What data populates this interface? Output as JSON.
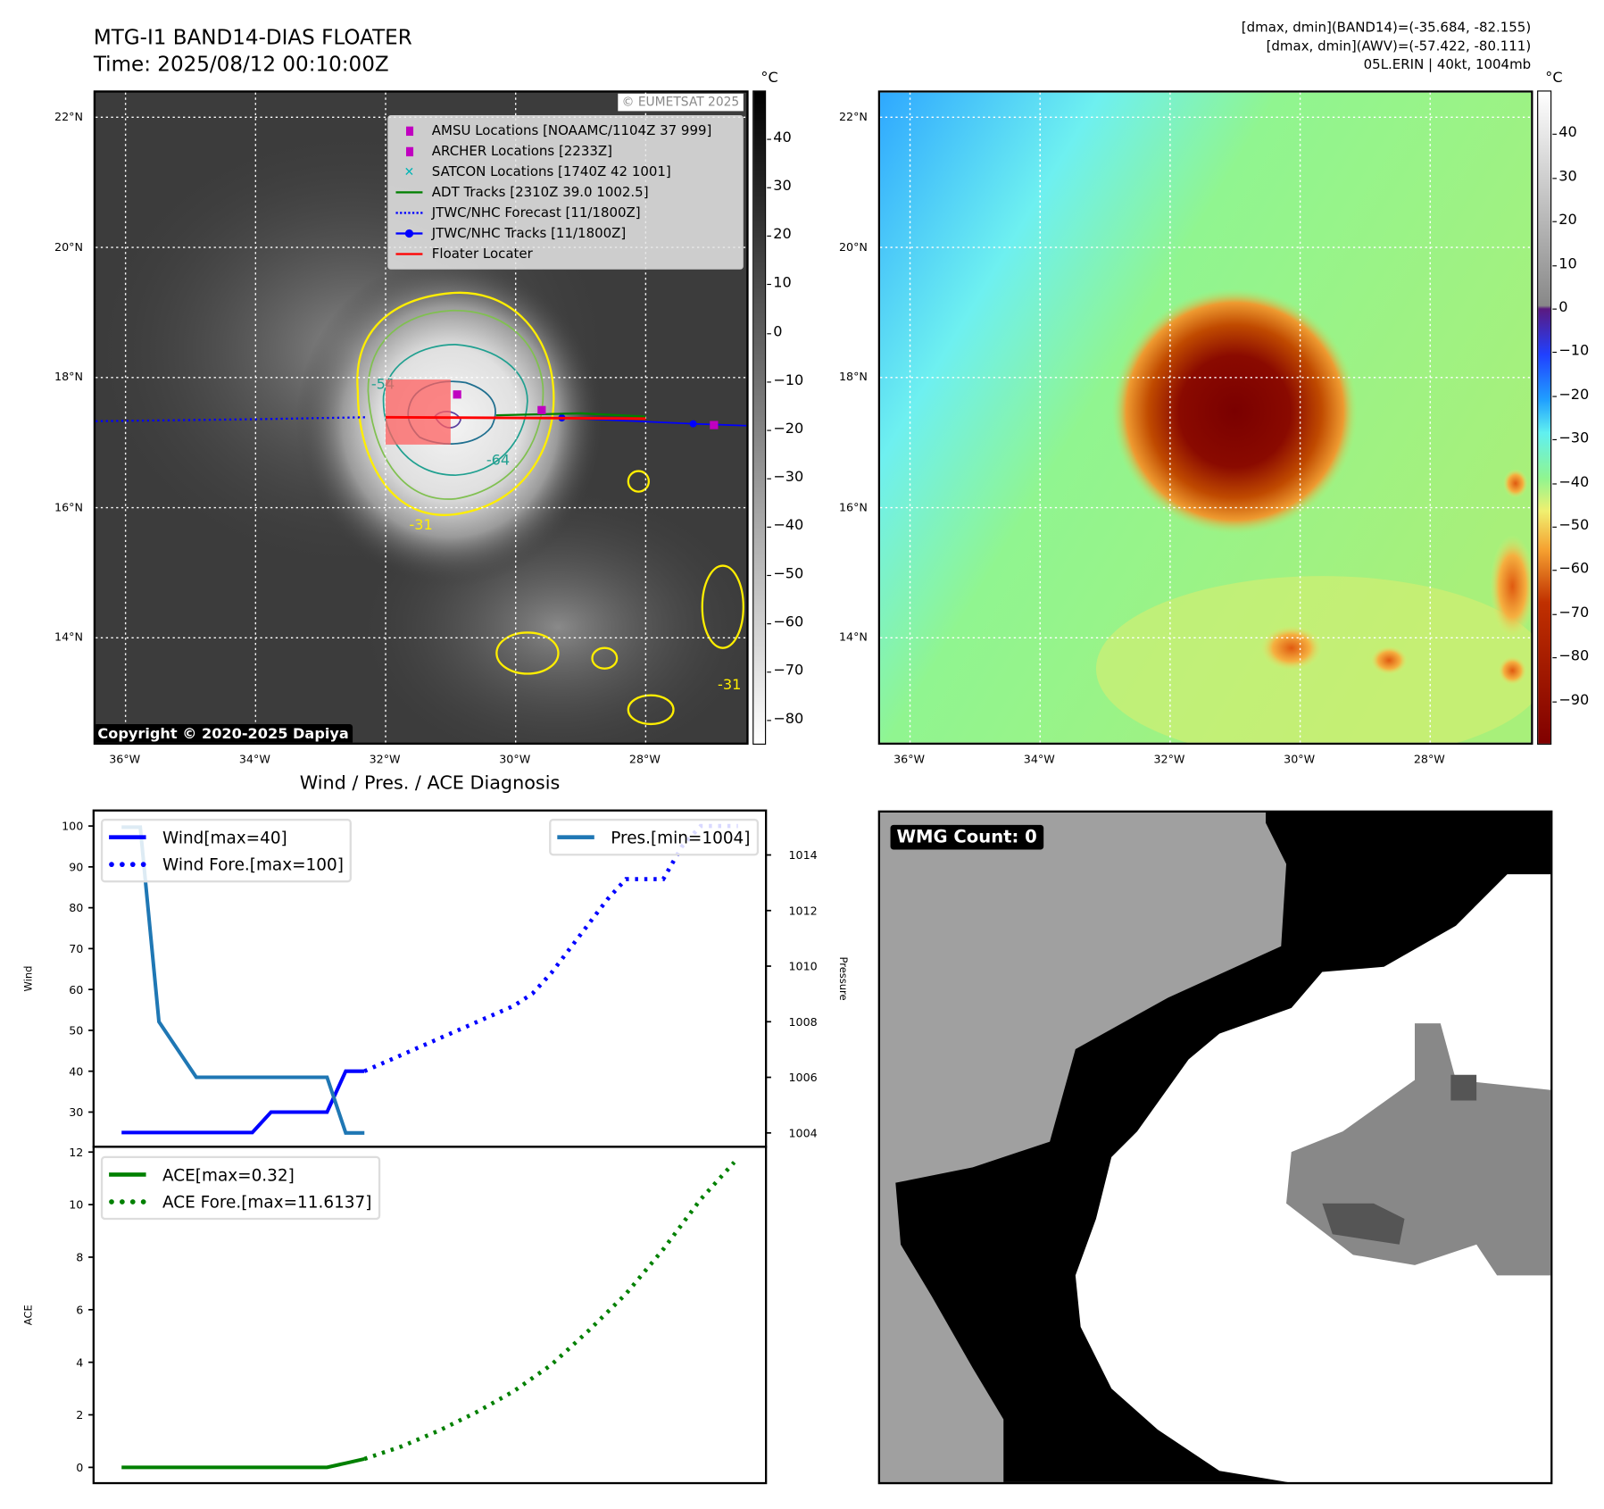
{
  "header": {
    "title": "MTG-I1 BAND14-DIAS FLOATER",
    "time": "Time: 2025/08/12 00:10:00Z",
    "info_line1": "[dmax, dmin](BAND14)=(-35.684, -82.155)",
    "info_line2": "[dmax, dmin](AWV)=(-57.422, -80.111)",
    "info_line3": "05L.ERIN | 40kt, 1004mb"
  },
  "maps": {
    "lon_ticks": [
      -36,
      -34,
      -32,
      -30,
      -28
    ],
    "lon_labels": [
      "36°W",
      "34°W",
      "32°W",
      "30°W",
      "28°W"
    ],
    "lat_ticks": [
      22,
      20,
      18,
      16,
      14
    ],
    "lat_labels": [
      "22°N",
      "20°N",
      "18°N",
      "16°N",
      "14°N"
    ],
    "lon_range": [
      -36.46,
      -26.45
    ],
    "lat_range": [
      12.39,
      22.38
    ],
    "unit_label": "°C",
    "copyright": "Copyright © 2020-2025 Dapiya",
    "watermark": "© EUMETSAT 2025",
    "contour_labels": [
      "-54",
      "-64",
      "-31",
      "-31"
    ],
    "legend": [
      {
        "label": "AMSU Locations [NOAAMC/1104Z 37 999]",
        "marker": "square",
        "color": "#c000c0"
      },
      {
        "label": "ARCHER Locations [2233Z]",
        "marker": "square",
        "color": "#c000c0"
      },
      {
        "label": "SATCON Locations [1740Z 42 1001]",
        "marker": "x",
        "color": "#00b5b5"
      },
      {
        "label": "ADT Tracks [2310Z 39.0 1002.5]",
        "marker": "line",
        "color": "#008000"
      },
      {
        "label": "JTWC/NHC Forecast [11/1800Z]",
        "marker": "dotted",
        "color": "#0000ff"
      },
      {
        "label": "JTWC/NHC Tracks [11/1800Z]",
        "marker": "line-dot",
        "color": "#0000ff"
      },
      {
        "label": "Floater Locater",
        "marker": "line",
        "color": "#ff0000"
      }
    ],
    "tracks": {
      "forecast": [
        [
          -36.46,
          17.33
        ],
        [
          -34.0,
          17.36
        ],
        [
          -32.3,
          17.39
        ]
      ],
      "best": [
        [
          -29.29,
          17.38
        ],
        [
          -27.27,
          17.29
        ],
        [
          -26.45,
          17.26
        ]
      ],
      "adt": [
        [
          -30.3,
          17.42
        ],
        [
          -29.0,
          17.45
        ],
        [
          -28.0,
          17.4
        ]
      ],
      "floater": [
        [
          -32.0,
          17.39
        ],
        [
          -28.0,
          17.37
        ]
      ],
      "magenta_points": [
        [
          -30.9,
          17.74
        ],
        [
          -29.6,
          17.5
        ],
        [
          -26.95,
          17.27
        ]
      ],
      "floater_box": [
        [
          -32.0,
          17.97
        ],
        [
          -31.0,
          16.97
        ]
      ]
    },
    "left_colorbar": {
      "ticks": [
        40,
        30,
        20,
        10,
        0,
        -10,
        -20,
        -30,
        -40,
        -50,
        -60,
        -70,
        -80
      ],
      "range": [
        50,
        -85
      ]
    },
    "right_colorbar": {
      "ticks": [
        40,
        30,
        20,
        10,
        0,
        -10,
        -20,
        -30,
        -40,
        -50,
        -60,
        -70,
        -80,
        -90
      ],
      "range": [
        50,
        -100
      ]
    }
  },
  "chart_data": [
    {
      "type": "line",
      "title": "Wind / Pres. / ACE Diagnosis",
      "ylabel": "Wind",
      "y2label": "Pressure",
      "ylim": [
        21.5,
        103.8
      ],
      "y2lim": [
        1003.5,
        1015.6
      ],
      "xlim": [
        -1.5,
        34.5
      ],
      "yticks": [
        30,
        40,
        50,
        60,
        70,
        80,
        90,
        100
      ],
      "y2ticks": [
        1004,
        1006,
        1008,
        1010,
        1012,
        1014
      ],
      "series": [
        {
          "name": "Wind[max=40]",
          "style": "solid",
          "color": "#0000ff",
          "x": [
            0,
            1,
            2,
            3,
            4,
            5,
            6,
            7,
            8,
            9,
            10,
            11,
            12,
            13
          ],
          "values": [
            25,
            25,
            25,
            25,
            25,
            25,
            25,
            25,
            30,
            30,
            30,
            30,
            40,
            40
          ]
        },
        {
          "name": "Wind Fore.[max=100]",
          "style": "dotted",
          "color": "#0000ff",
          "x": [
            13,
            14,
            15,
            16,
            17,
            18,
            19,
            20,
            21,
            22,
            23,
            24,
            25,
            26,
            27,
            28,
            29,
            30,
            31,
            32,
            33
          ],
          "values": [
            40,
            42,
            44,
            46,
            48,
            50,
            52,
            54,
            56,
            59,
            64,
            70,
            76,
            82,
            87,
            87,
            87,
            95,
            100,
            100,
            100
          ]
        },
        {
          "name": "Pres.[min=1004]",
          "style": "solid",
          "color": "#1f77b4",
          "axis": "right",
          "x": [
            0,
            1,
            2,
            3,
            4,
            5,
            6,
            7,
            8,
            9,
            10,
            11,
            12,
            13
          ],
          "values": [
            1015,
            1015,
            1008,
            1007,
            1006,
            1006,
            1006,
            1006,
            1006,
            1006,
            1006,
            1006,
            1004,
            1004
          ]
        }
      ]
    },
    {
      "type": "line",
      "ylabel": "ACE",
      "ylim": [
        -0.6,
        12.2
      ],
      "xlim": [
        -1.5,
        34.5
      ],
      "yticks": [
        0,
        2,
        4,
        6,
        8,
        10,
        12
      ],
      "series": [
        {
          "name": "ACE[max=0.32]",
          "style": "solid",
          "color": "#008000",
          "x": [
            0,
            1,
            2,
            3,
            4,
            5,
            6,
            7,
            8,
            9,
            10,
            11,
            12,
            13
          ],
          "values": [
            0,
            0,
            0,
            0,
            0,
            0,
            0,
            0,
            0,
            0,
            0,
            0,
            0.16,
            0.32
          ]
        },
        {
          "name": "ACE Fore.[max=11.6137]",
          "style": "dotted",
          "color": "#008000",
          "x": [
            13,
            15,
            17,
            19,
            21,
            23,
            25,
            27,
            29,
            31,
            32.8
          ],
          "values": [
            0.32,
            0.8,
            1.4,
            2.1,
            2.9,
            3.9,
            5.2,
            6.6,
            8.3,
            10.2,
            11.6137
          ]
        }
      ]
    }
  ],
  "wmg": {
    "label": "WMG Count: 0"
  }
}
